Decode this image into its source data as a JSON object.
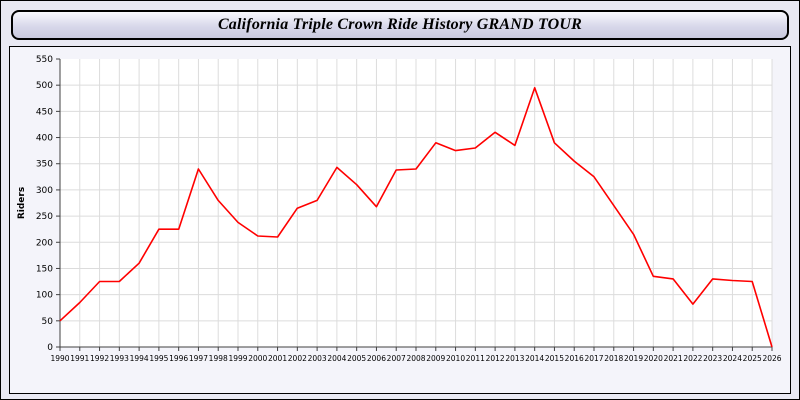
{
  "header": {
    "title": "California Triple Crown Ride History GRAND TOUR"
  },
  "chart_data": {
    "type": "line",
    "title": "California Triple Crown Ride History GRAND TOUR",
    "xlabel": "",
    "ylabel": "Riders",
    "ylim": [
      0,
      550
    ],
    "ytick_step": 50,
    "grid": true,
    "legend": "none",
    "line_color": "#ff0000",
    "x": [
      1990,
      1991,
      1992,
      1993,
      1994,
      1995,
      1996,
      1997,
      1998,
      1999,
      2000,
      2001,
      2002,
      2003,
      2004,
      2005,
      2006,
      2007,
      2008,
      2009,
      2010,
      2011,
      2012,
      2013,
      2014,
      2015,
      2016,
      2017,
      2018,
      2019,
      2020,
      2021,
      2022,
      2023,
      2024,
      2025,
      2026
    ],
    "values": [
      50,
      85,
      125,
      125,
      160,
      225,
      225,
      340,
      280,
      238,
      212,
      210,
      265,
      280,
      343,
      310,
      268,
      338,
      340,
      390,
      375,
      380,
      410,
      385,
      495,
      390,
      355,
      325,
      270,
      215,
      135,
      130,
      82,
      130,
      127,
      125,
      0
    ]
  }
}
